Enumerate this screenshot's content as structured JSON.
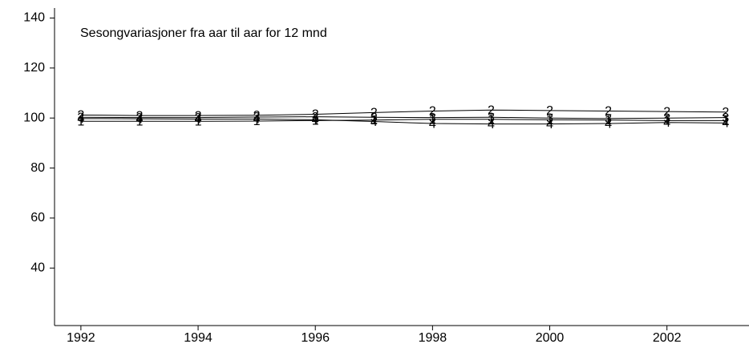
{
  "chart_data": {
    "type": "line",
    "title": "Sesongvariasjoner fra aar til aar for 12 mnd",
    "x": [
      1992,
      1993,
      1994,
      1995,
      1996,
      1997,
      1998,
      1999,
      2000,
      2001,
      2002,
      2003
    ],
    "series": [
      {
        "name": "1",
        "color": "#000000",
        "values": [
          98.7,
          98.7,
          98.7,
          98.8,
          99.0,
          99.2,
          99.5,
          99.5,
          99.3,
          99.2,
          99.0,
          99.0
        ]
      },
      {
        "name": "2",
        "color": "#000000",
        "values": [
          101.2,
          101.0,
          101.0,
          101.1,
          101.5,
          102.2,
          102.8,
          103.2,
          103.0,
          102.8,
          102.6,
          102.4
        ]
      },
      {
        "name": "3",
        "color": "#000000",
        "values": [
          100.3,
          100.2,
          100.2,
          100.4,
          100.5,
          100.3,
          100.2,
          100.3,
          100.0,
          99.8,
          100.0,
          100.2
        ]
      },
      {
        "name": "4",
        "color": "#000000",
        "values": [
          99.8,
          99.7,
          99.6,
          99.6,
          99.3,
          98.6,
          97.8,
          97.6,
          97.6,
          97.8,
          98.2,
          98.0
        ]
      }
    ],
    "xlim": [
      1991.55,
      2003.4
    ],
    "xticks": [
      1992,
      1994,
      1996,
      1998,
      2000,
      2002
    ],
    "ylim": [
      17,
      144
    ],
    "yticks": [
      40,
      60,
      80,
      100,
      120,
      140
    ],
    "grid": false
  }
}
